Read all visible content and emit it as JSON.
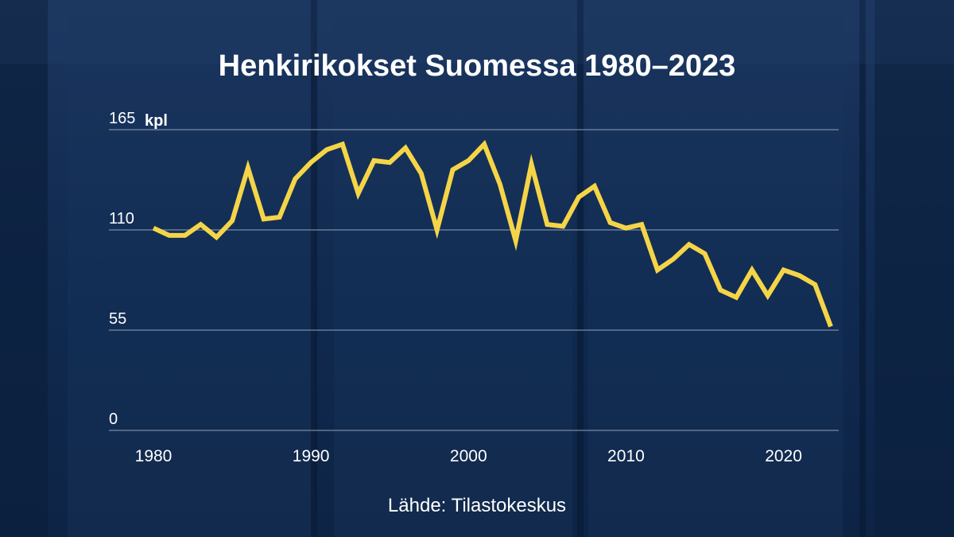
{
  "colors": {
    "background": "#0f2648",
    "line": "#f5d547",
    "grid": "#8a9ab3",
    "text": "#ffffff"
  },
  "source": "Lähde: Tilastokeskus",
  "chart_data": {
    "type": "line",
    "title": "Henkirikokset Suomessa 1980–2023",
    "unit_label": "kpl",
    "ylim": [
      0,
      165
    ],
    "yticks": [
      0,
      55,
      110,
      165
    ],
    "xticks": [
      1980,
      1990,
      2000,
      2010,
      2020
    ],
    "grid": true,
    "x": [
      1980,
      1981,
      1982,
      1983,
      1984,
      1985,
      1986,
      1987,
      1988,
      1989,
      1990,
      1991,
      1992,
      1993,
      1994,
      1995,
      1996,
      1997,
      1998,
      1999,
      2000,
      2001,
      2002,
      2003,
      2004,
      2005,
      2006,
      2007,
      2008,
      2009,
      2010,
      2011,
      2012,
      2013,
      2014,
      2015,
      2016,
      2017,
      2018,
      2019,
      2020,
      2021,
      2022,
      2023
    ],
    "series": [
      {
        "values": [
          111,
          107,
          107,
          113,
          106,
          115,
          144,
          116,
          117,
          138,
          147,
          154,
          157,
          130,
          148,
          147,
          155,
          141,
          110,
          143,
          148,
          157,
          135,
          104,
          146,
          113,
          112,
          128,
          134,
          114,
          111,
          113,
          88,
          94,
          102,
          97,
          77,
          73,
          88,
          74,
          88,
          85,
          80,
          57
        ]
      }
    ]
  }
}
